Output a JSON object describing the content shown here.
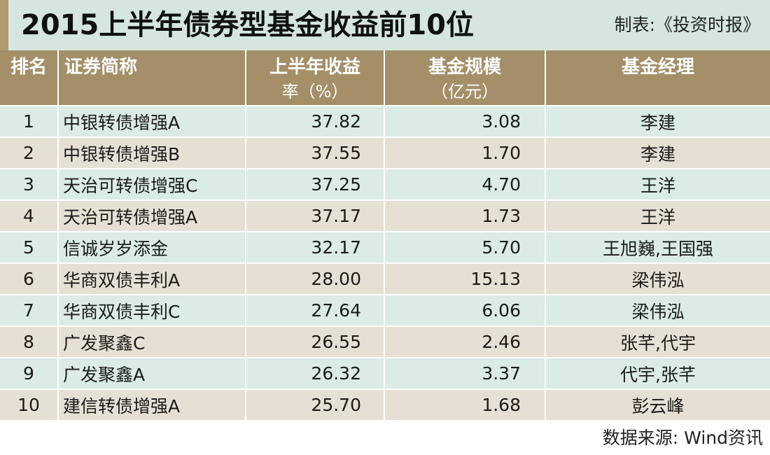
{
  "title": "2015上半年债券型基金收益前10位",
  "source_top": "制表:《投资时报》",
  "footer": "数据来源: Wind资讯",
  "colors": {
    "header_bg": "#a48f68",
    "title_bg": "#d4e6df",
    "row_odd": "#dbebe6",
    "row_even": "#e6e0d4"
  },
  "chart_data": {
    "type": "table",
    "title": "2015上半年债券型基金收益前10位",
    "columns": [
      {
        "main": "排名",
        "sub": ""
      },
      {
        "main": "证券简称",
        "sub": ""
      },
      {
        "main": "上半年收益",
        "sub": "率（%）"
      },
      {
        "main": "基金规模",
        "sub": "（亿元）"
      },
      {
        "main": "基金经理",
        "sub": ""
      }
    ],
    "rows": [
      {
        "rank": "1",
        "name": "中银转债增强A",
        "return": "37.82",
        "size": "3.08",
        "manager": "李建"
      },
      {
        "rank": "2",
        "name": "中银转债增强B",
        "return": "37.55",
        "size": "1.70",
        "manager": "李建"
      },
      {
        "rank": "3",
        "name": "天治可转债增强C",
        "return": "37.25",
        "size": "4.70",
        "manager": "王洋"
      },
      {
        "rank": "4",
        "name": "天治可转债增强A",
        "return": "37.17",
        "size": "1.73",
        "manager": "王洋"
      },
      {
        "rank": "5",
        "name": "信诚岁岁添金",
        "return": "32.17",
        "size": "5.70",
        "manager": "王旭巍,王国强"
      },
      {
        "rank": "6",
        "name": "华商双债丰利A",
        "return": "28.00",
        "size": "15.13",
        "manager": "梁伟泓"
      },
      {
        "rank": "7",
        "name": "华商双债丰利C",
        "return": "27.64",
        "size": "6.06",
        "manager": "梁伟泓"
      },
      {
        "rank": "8",
        "name": "广发聚鑫C",
        "return": "26.55",
        "size": "2.46",
        "manager": "张芊,代宇"
      },
      {
        "rank": "9",
        "name": "广发聚鑫A",
        "return": "26.32",
        "size": "3.37",
        "manager": "代宇,张芊"
      },
      {
        "rank": "10",
        "name": "建信转债增强A",
        "return": "25.70",
        "size": "1.68",
        "manager": "彭云峰"
      }
    ]
  }
}
